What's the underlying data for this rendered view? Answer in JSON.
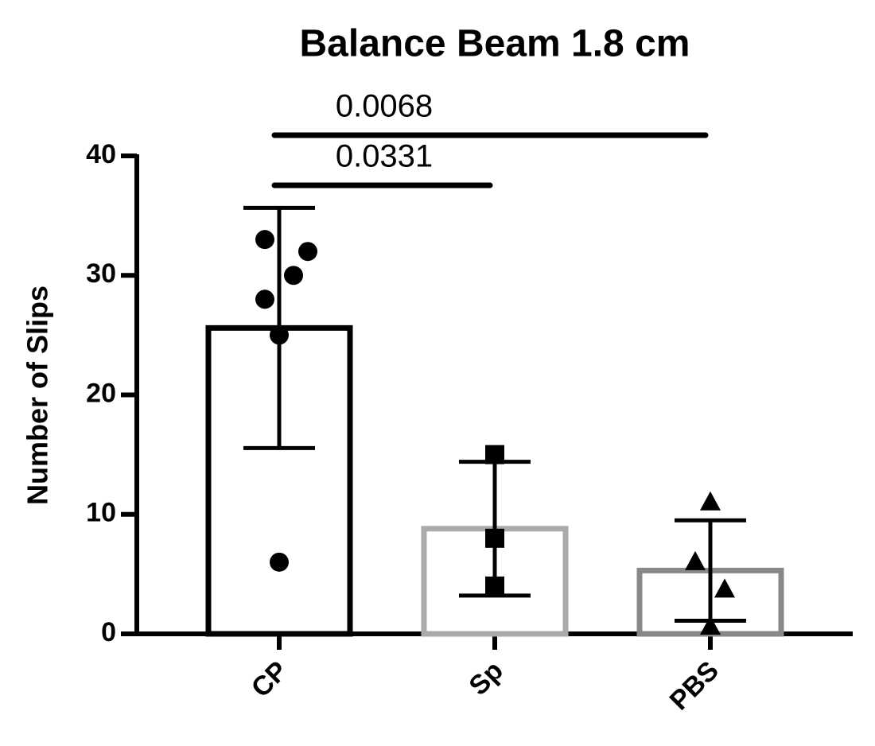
{
  "chart_data": {
    "type": "bar",
    "title": "Balance Beam 1.8 cm",
    "y_label": "Number of Slips",
    "categories": [
      "CP",
      "Sp",
      "PBS"
    ],
    "values": [
      25.6,
      8.8,
      5.3
    ],
    "errors": [
      10.05,
      5.6,
      4.2
    ],
    "colors": [
      "#000000",
      "#aaaaaa",
      "#888888"
    ],
    "markers": [
      "circle",
      "square",
      "triangle"
    ],
    "points": [
      [
        33,
        32,
        30,
        28,
        25,
        6
      ],
      [
        15,
        8,
        4
      ],
      [
        11,
        6,
        3.7,
        0.6
      ]
    ],
    "ylim": [
      0,
      40
    ],
    "yticks": [
      0,
      10,
      20,
      30,
      40
    ],
    "annotations": [
      {
        "label": "0.0068",
        "between": [
          "CP",
          "PBS"
        ]
      },
      {
        "label": "0.0331",
        "between": [
          "CP",
          "Sp"
        ]
      }
    ]
  }
}
